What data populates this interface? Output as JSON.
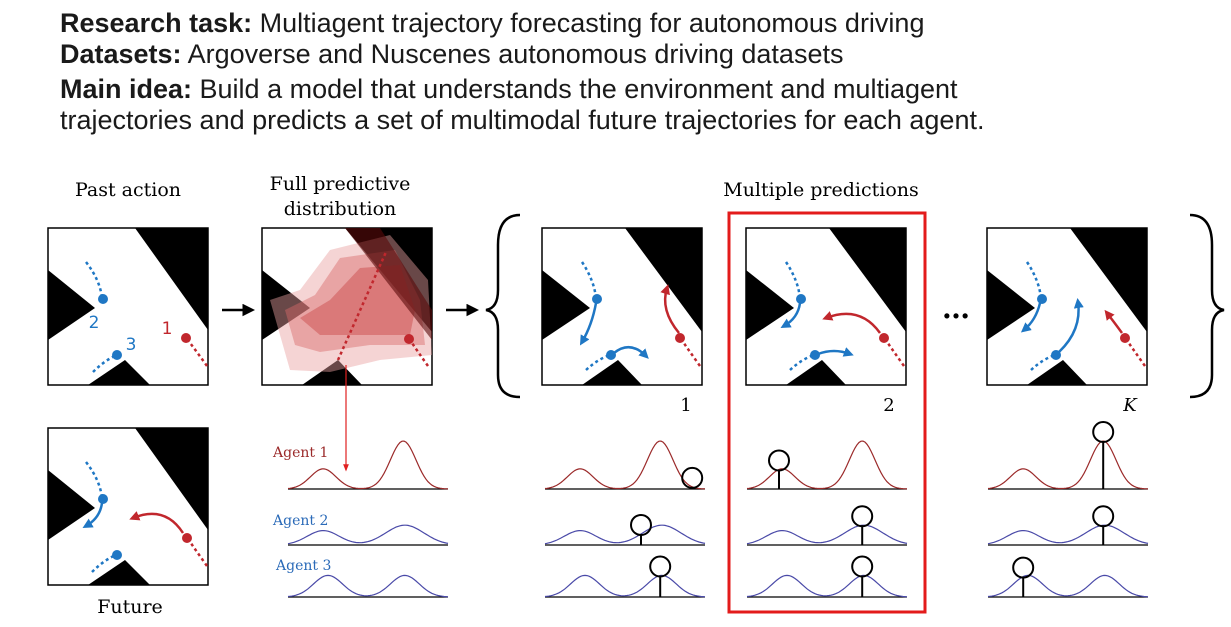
{
  "header": {
    "research_task_label": "Research task:",
    "research_task_text": " Multiagent trajectory forecasting for autonomous driving",
    "datasets_label": "Datasets:",
    "datasets_text": " Argoverse and Nuscenes autonomous driving datasets",
    "main_idea_label": "Main idea:",
    "main_idea_line1": " Build a model that understands the environment and multiagent",
    "main_idea_line2": "trajectories and predicts a set of multimodal future trajectories for each agent."
  },
  "diagram": {
    "past_action_label": "Past action",
    "full_predictive_line1": "Full predictive",
    "full_predictive_line2": "distribution",
    "multiple_predictions_label": "Multiple predictions",
    "future_label": "Future",
    "agent_labels": [
      "Agent 1",
      "Agent 2",
      "Agent 3"
    ],
    "agent_numbers": [
      "1",
      "2",
      "3"
    ],
    "prediction_indices": [
      "1",
      "2",
      "K"
    ],
    "ellipsis": "…",
    "colors": {
      "agent1": "#c1272d",
      "agent2": "#1f77c4",
      "highlight": "#e31b1b",
      "curve_agent1": "#9b2a2a",
      "curve_agents23": "#4a4aa8"
    }
  }
}
